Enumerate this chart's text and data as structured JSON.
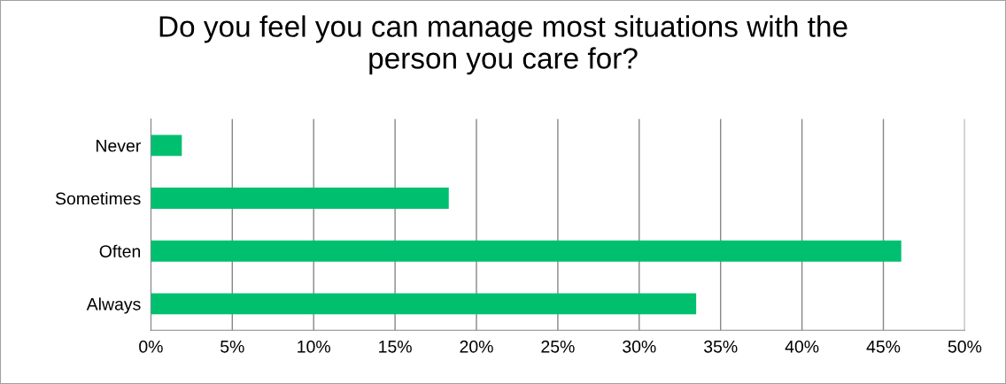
{
  "chart_data": {
    "type": "bar",
    "orientation": "horizontal",
    "title": "Do you feel you can manage most situations with the\nperson you care for?",
    "categories": [
      "Never",
      "Sometimes",
      "Often",
      "Always"
    ],
    "values": [
      1.9,
      18.3,
      46.1,
      33.5
    ],
    "color": "#00c070",
    "xlim": [
      0,
      50
    ],
    "xticks": [
      {
        "value": 0,
        "label": "0%"
      },
      {
        "value": 5,
        "label": "5%"
      },
      {
        "value": 10,
        "label": "10%"
      },
      {
        "value": 15,
        "label": "15%"
      },
      {
        "value": 20,
        "label": "20%"
      },
      {
        "value": 25,
        "label": "25%"
      },
      {
        "value": 30,
        "label": "30%"
      },
      {
        "value": 35,
        "label": "35%"
      },
      {
        "value": 40,
        "label": "40%"
      },
      {
        "value": 45,
        "label": "45%"
      },
      {
        "value": 50,
        "label": "50%"
      }
    ],
    "grid": "x",
    "legend": false
  }
}
